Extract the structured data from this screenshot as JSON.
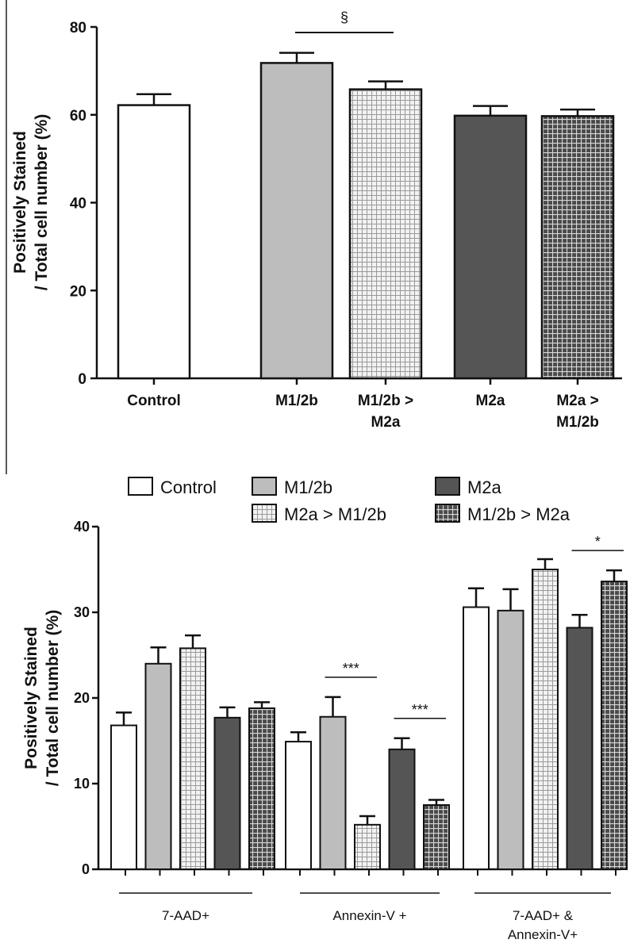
{
  "chart_data": [
    {
      "type": "bar",
      "ylabel": [
        "Positively Stained",
        "/ Total cell number (%)"
      ],
      "ylim": [
        0,
        80
      ],
      "yticks": [
        0,
        20,
        40,
        60,
        80
      ],
      "categories": [
        "Control",
        "M1/2b",
        "M1/2b > M2a",
        "M2a",
        "M2a > M1/2b"
      ],
      "category_lines": [
        [
          "Control"
        ],
        [
          "M1/2b"
        ],
        [
          "M1/2b >",
          "M2a"
        ],
        [
          "M2a"
        ],
        [
          "M2a >",
          "M1/2b"
        ]
      ],
      "values": [
        62.2,
        71.8,
        65.8,
        59.8,
        59.7
      ],
      "errors": [
        2.5,
        2.3,
        1.8,
        2.2,
        1.5
      ],
      "fills": [
        "white",
        "light",
        "light-grid",
        "dark",
        "dark-grid"
      ],
      "significance": [
        {
          "from": 1,
          "to": 2,
          "label": "§"
        }
      ]
    },
    {
      "type": "bar",
      "ylabel": [
        "Positively Stained",
        "/ Total cell number (%)"
      ],
      "ylim": [
        0,
        40
      ],
      "yticks": [
        0,
        10,
        20,
        30,
        40
      ],
      "legend": [
        {
          "label": "Control",
          "fill": "white"
        },
        {
          "label": "M1/2b",
          "fill": "light"
        },
        {
          "label": "M2a",
          "fill": "dark"
        },
        {
          "label": "M2a > M1/2b",
          "fill": "light-grid"
        },
        {
          "label": "M1/2b > M2a",
          "fill": "dark-grid"
        }
      ],
      "legend_position": "top",
      "groups": [
        {
          "lines": [
            "7-AAD+"
          ]
        },
        {
          "lines": [
            "Annexin-V +"
          ]
        },
        {
          "lines": [
            "7-AAD+ &",
            "Annexin-V+"
          ]
        }
      ],
      "series": [
        {
          "name": "Control",
          "fill": "white",
          "values": [
            16.8,
            14.9,
            30.6
          ],
          "errors": [
            1.5,
            1.1,
            2.2
          ]
        },
        {
          "name": "M1/2b",
          "fill": "light",
          "values": [
            24.0,
            17.8,
            30.2
          ],
          "errors": [
            1.9,
            2.3,
            2.5
          ]
        },
        {
          "name": "M2a > M1/2b",
          "fill": "light-grid",
          "values": [
            25.8,
            5.2,
            35.0
          ],
          "errors": [
            1.5,
            1.0,
            1.2
          ]
        },
        {
          "name": "M2a",
          "fill": "dark",
          "values": [
            17.7,
            14.0,
            28.2
          ],
          "errors": [
            1.2,
            1.3,
            1.5
          ]
        },
        {
          "name": "M1/2b > M2a",
          "fill": "dark-grid",
          "values": [
            18.8,
            7.5,
            33.6
          ],
          "errors": [
            0.7,
            0.6,
            1.3
          ]
        }
      ],
      "significance": [
        {
          "group": 1,
          "from": 1,
          "to": 2,
          "label": "***"
        },
        {
          "group": 1,
          "from": 3,
          "to": 4,
          "label": "***"
        },
        {
          "group": 2,
          "from": 3,
          "to": 4,
          "label": "*"
        }
      ]
    }
  ],
  "colors": {
    "white": "#ffffff",
    "light": "#bdbdbd",
    "dark": "#555555",
    "axis": "#111111"
  }
}
